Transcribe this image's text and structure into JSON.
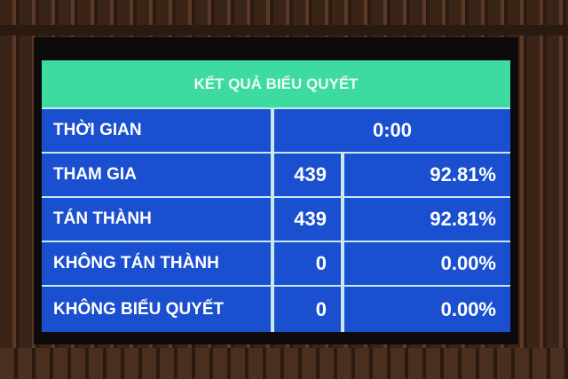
{
  "title": "KẾT QUẢ BIỂU QUYẾT",
  "time": {
    "label": "THỜI GIAN",
    "value": "0:00"
  },
  "rows": [
    {
      "label": "THAM GIA",
      "count": "439",
      "percent": "92.81%"
    },
    {
      "label": "TÁN THÀNH",
      "count": "439",
      "percent": "92.81%"
    },
    {
      "label": "KHÔNG TÁN THÀNH",
      "count": "0",
      "percent": "0.00%"
    },
    {
      "label": "KHÔNG BIỂU QUYẾT",
      "count": "0",
      "percent": "0.00%"
    }
  ],
  "colors": {
    "header": "#3ddba0",
    "cell": "#1a4fd0"
  }
}
